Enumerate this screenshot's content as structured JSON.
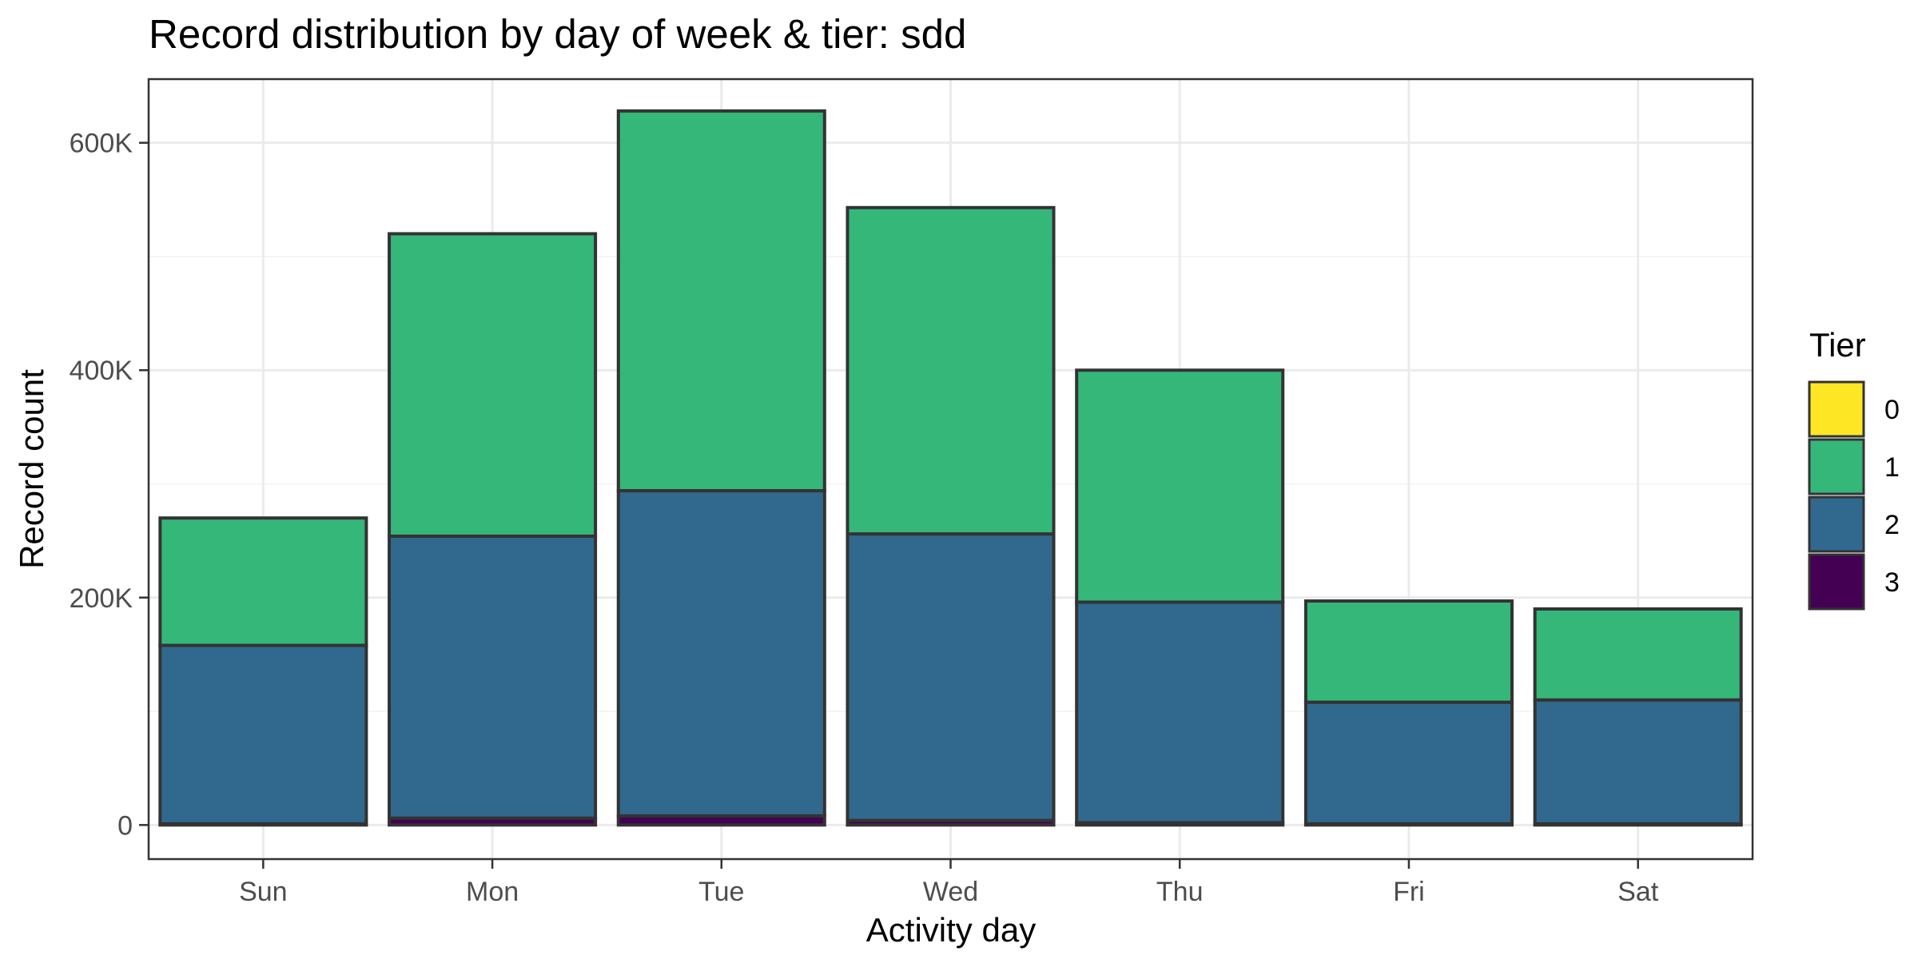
{
  "chart_data": {
    "type": "bar",
    "stacked": true,
    "title": "Record distribution by day of week & tier: sdd",
    "xlabel": "Activity day",
    "ylabel": "Record count",
    "categories": [
      "Sun",
      "Mon",
      "Tue",
      "Wed",
      "Thu",
      "Fri",
      "Sat"
    ],
    "ylim": [
      -30000,
      656000
    ],
    "yticks": [
      0,
      200000,
      400000,
      600000
    ],
    "ytick_labels": [
      "0",
      "200K",
      "400K",
      "600K"
    ],
    "grid": true,
    "legend": {
      "title": "Tier",
      "position": "right"
    },
    "series": [
      {
        "name": "0",
        "color": "#FDE725",
        "values": [
          0,
          0,
          0,
          0,
          0,
          0,
          0
        ]
      },
      {
        "name": "1",
        "color": "#35B779",
        "values": [
          112000,
          266000,
          334000,
          287000,
          204000,
          89000,
          80000
        ]
      },
      {
        "name": "2",
        "color": "#31688E",
        "values": [
          157000,
          248000,
          286000,
          252000,
          194000,
          107000,
          109000
        ]
      },
      {
        "name": "3",
        "color": "#440154",
        "values": [
          1000,
          6000,
          8000,
          4000,
          2000,
          1000,
          1000
        ]
      }
    ]
  }
}
